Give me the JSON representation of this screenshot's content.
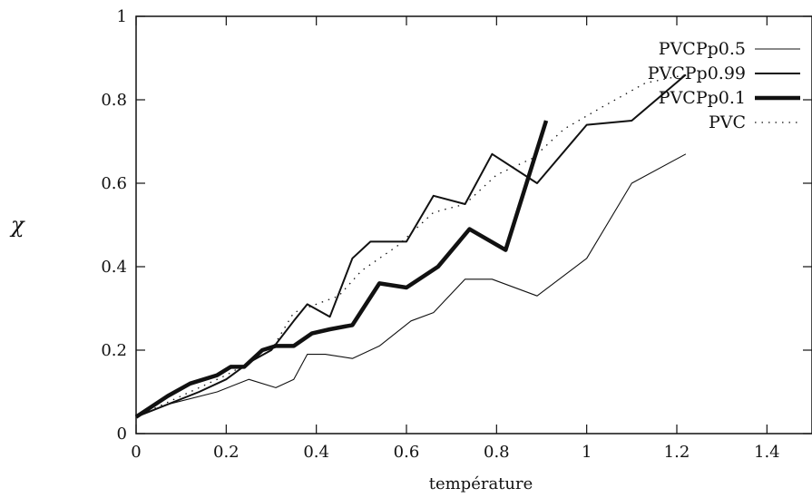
{
  "chart_data": {
    "type": "line",
    "title": "",
    "xlabel": "température",
    "ylabel": "χ",
    "xlim": [
      0,
      1.5
    ],
    "ylim": [
      0,
      1
    ],
    "xticks": [
      0,
      0.2,
      0.4,
      0.6,
      0.8,
      1,
      1.2,
      1.4
    ],
    "yticks": [
      0,
      0.2,
      0.4,
      0.6,
      0.8,
      1
    ],
    "xtick_labels": [
      "0",
      "0.2",
      "0.4",
      "0.6",
      "0.8",
      "1",
      "1.2",
      "1.4"
    ],
    "ytick_labels": [
      "0",
      "0.2",
      "0.4",
      "0.6",
      "0.8",
      "1"
    ],
    "grid": false,
    "legend_position": "top-right",
    "series": [
      {
        "name": "PVCPp0.5",
        "style": "thin",
        "x": [
          0,
          0.07,
          0.18,
          0.25,
          0.31,
          0.35,
          0.38,
          0.42,
          0.48,
          0.54,
          0.61,
          0.66,
          0.73,
          0.79,
          0.89,
          1.0,
          1.1,
          1.22
        ],
        "y": [
          0.04,
          0.07,
          0.1,
          0.13,
          0.11,
          0.13,
          0.19,
          0.19,
          0.18,
          0.21,
          0.27,
          0.29,
          0.37,
          0.37,
          0.33,
          0.42,
          0.6,
          0.67
        ]
      },
      {
        "name": "PVCPp0.99",
        "style": "medium",
        "x": [
          0,
          0.07,
          0.14,
          0.2,
          0.25,
          0.3,
          0.35,
          0.38,
          0.43,
          0.48,
          0.52,
          0.6,
          0.66,
          0.73,
          0.79,
          0.89,
          1.0,
          1.1,
          1.22
        ],
        "y": [
          0.04,
          0.07,
          0.1,
          0.13,
          0.17,
          0.2,
          0.27,
          0.31,
          0.28,
          0.42,
          0.46,
          0.46,
          0.57,
          0.55,
          0.67,
          0.6,
          0.74,
          0.75,
          0.86
        ]
      },
      {
        "name": "PVCPp0.1",
        "style": "thick",
        "x": [
          0,
          0.07,
          0.12,
          0.18,
          0.21,
          0.24,
          0.28,
          0.31,
          0.35,
          0.39,
          0.43,
          0.48,
          0.54,
          0.6,
          0.67,
          0.74,
          0.82,
          0.91
        ],
        "y": [
          0.04,
          0.09,
          0.12,
          0.14,
          0.16,
          0.16,
          0.2,
          0.21,
          0.21,
          0.24,
          0.25,
          0.26,
          0.36,
          0.35,
          0.4,
          0.49,
          0.44,
          0.75
        ]
      },
      {
        "name": "PVC",
        "style": "dotted",
        "x": [
          0,
          0.1,
          0.2,
          0.3,
          0.35,
          0.45,
          0.5,
          0.58,
          0.66,
          0.73,
          0.8,
          0.88,
          0.95,
          1.03,
          1.13,
          1.22
        ],
        "y": [
          0.04,
          0.09,
          0.14,
          0.2,
          0.29,
          0.33,
          0.39,
          0.45,
          0.53,
          0.55,
          0.62,
          0.66,
          0.73,
          0.78,
          0.84,
          0.86
        ]
      }
    ]
  }
}
